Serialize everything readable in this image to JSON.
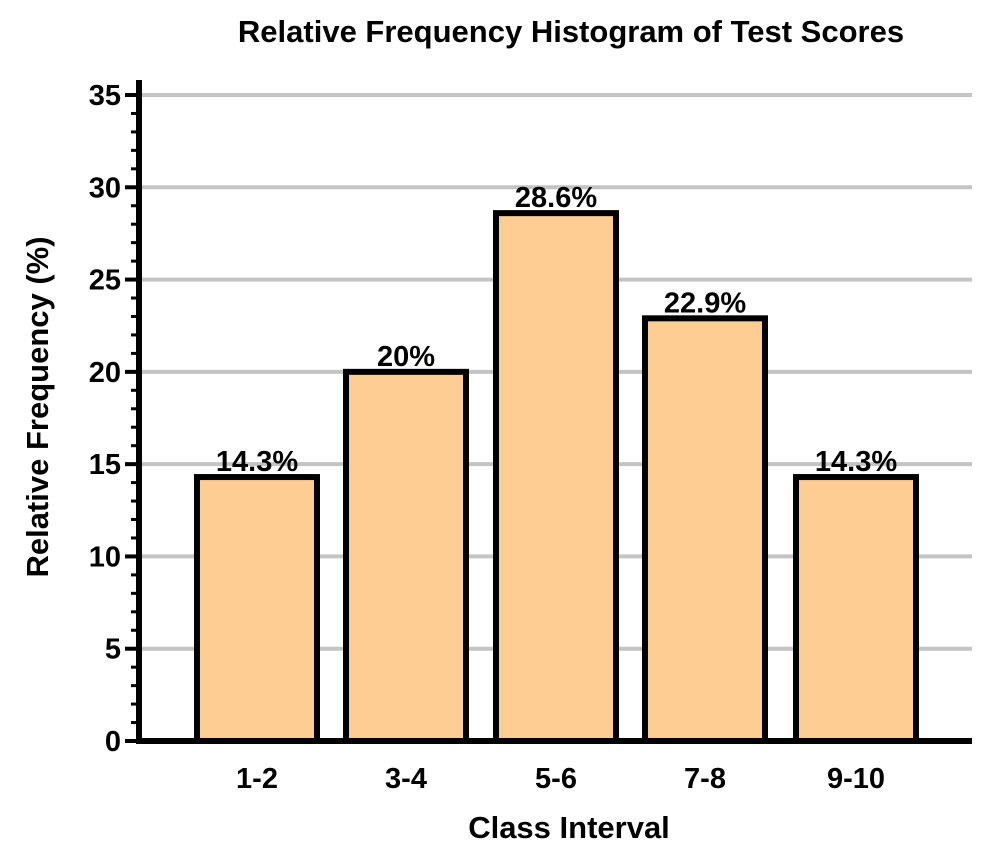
{
  "chart_data": {
    "type": "bar",
    "title": "Relative Frequency Histogram of Test Scores",
    "xlabel": "Class Interval",
    "ylabel": "Relative Frequency (%)",
    "categories": [
      "1-2",
      "3-4",
      "5-6",
      "7-8",
      "9-10"
    ],
    "values": [
      14.3,
      20,
      28.6,
      22.9,
      14.3
    ],
    "data_labels": [
      "14.3%",
      "20%",
      "28.6%",
      "22.9%",
      "14.3%"
    ],
    "ylim": [
      0,
      35
    ],
    "yticks": [
      0,
      5,
      10,
      15,
      20,
      25,
      30,
      35
    ],
    "grid": true,
    "legend": "none",
    "colors": {
      "bar_fill": "#FDCD94",
      "bar_stroke": "#000000",
      "grid": "#C4C4C4",
      "axis": "#000000"
    }
  }
}
